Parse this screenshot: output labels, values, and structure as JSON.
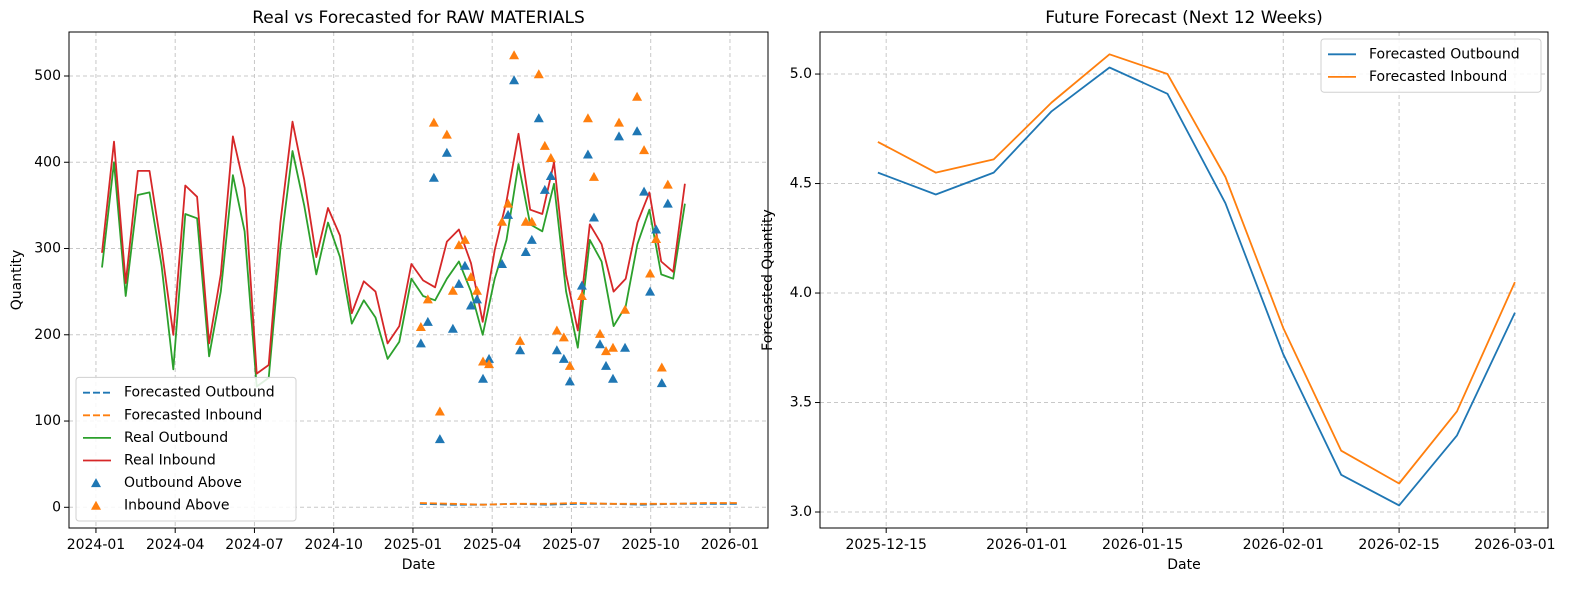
{
  "chart_data": [
    {
      "type": "line",
      "title": "Real vs Forecasted for RAW MATERIALS",
      "xlabel": "Date",
      "ylabel": "Quantity",
      "xlim": [
        2023.915,
        2026.12
      ],
      "ylim": [
        -24,
        551
      ],
      "xticks": [
        {
          "value": 2024,
          "label": "2024-01"
        },
        {
          "value": 2024.25,
          "label": "2024-04"
        },
        {
          "value": 2024.5,
          "label": "2024-07"
        },
        {
          "value": 2024.75,
          "label": "2024-10"
        },
        {
          "value": 2025,
          "label": "2025-01"
        },
        {
          "value": 2025.25,
          "label": "2025-04"
        },
        {
          "value": 2025.5,
          "label": "2025-07"
        },
        {
          "value": 2025.75,
          "label": "2025-10"
        },
        {
          "value": 2026,
          "label": "2026-01"
        }
      ],
      "yticks": [
        0,
        100,
        200,
        300,
        400,
        500
      ],
      "grid": true,
      "legend": "lower left",
      "series": [
        {
          "name": "Forecasted Outbound",
          "color": "#1f77b4",
          "kind": "line",
          "dashed": true,
          "x": [
            2025.022,
            2025.122,
            2025.222,
            2025.322,
            2025.422,
            2025.522,
            2025.622,
            2025.722,
            2025.822,
            2025.922,
            2026.025
          ],
          "values": [
            4,
            3,
            3,
            4,
            3,
            4,
            4,
            3,
            4,
            4,
            4
          ]
        },
        {
          "name": "Forecasted Inbound",
          "color": "#ff7f0e",
          "kind": "line",
          "dashed": true,
          "x": [
            2025.022,
            2025.122,
            2025.222,
            2025.322,
            2025.422,
            2025.522,
            2025.622,
            2025.722,
            2025.822,
            2025.922,
            2026.025
          ],
          "values": [
            5,
            4,
            3,
            4,
            4,
            5,
            4,
            4,
            4,
            5,
            5
          ]
        },
        {
          "name": "Real Outbound",
          "color": "#2ca02c",
          "kind": "line",
          "dashed": false,
          "x": [
            2024.019,
            2024.057,
            2024.094,
            2024.132,
            2024.169,
            2024.207,
            2024.244,
            2024.282,
            2024.319,
            2024.357,
            2024.394,
            2024.432,
            2024.469,
            2024.507,
            2024.545,
            2024.582,
            2024.62,
            2024.657,
            2024.695,
            2024.732,
            2024.77,
            2024.807,
            2024.845,
            2024.882,
            2024.92,
            2024.957,
            2024.995,
            2025.032,
            2025.07,
            2025.107,
            2025.145,
            2025.183,
            2025.22,
            2025.258,
            2025.295,
            2025.333,
            2025.37,
            2025.408,
            2025.445,
            2025.483,
            2025.52,
            2025.558,
            2025.595,
            2025.633,
            2025.671,
            2025.708,
            2025.746,
            2025.783,
            2025.821,
            2025.858
          ],
          "values": [
            278,
            400,
            245,
            362,
            365,
            280,
            160,
            340,
            335,
            175,
            250,
            385,
            320,
            140,
            150,
            300,
            413,
            350,
            270,
            330,
            290,
            213,
            240,
            220,
            172,
            192,
            265,
            245,
            240,
            265,
            285,
            250,
            200,
            265,
            310,
            398,
            328,
            320,
            375,
            250,
            185,
            310,
            285,
            210,
            233,
            305,
            345,
            270,
            265,
            352
          ]
        },
        {
          "name": "Real Inbound",
          "color": "#d62728",
          "kind": "line",
          "dashed": false,
          "x": [
            2024.019,
            2024.057,
            2024.094,
            2024.132,
            2024.169,
            2024.207,
            2024.244,
            2024.282,
            2024.319,
            2024.357,
            2024.394,
            2024.432,
            2024.469,
            2024.507,
            2024.545,
            2024.582,
            2024.62,
            2024.657,
            2024.695,
            2024.732,
            2024.77,
            2024.807,
            2024.845,
            2024.882,
            2024.92,
            2024.957,
            2024.995,
            2025.032,
            2025.07,
            2025.107,
            2025.145,
            2025.183,
            2025.22,
            2025.258,
            2025.295,
            2025.333,
            2025.37,
            2025.408,
            2025.445,
            2025.483,
            2025.52,
            2025.558,
            2025.595,
            2025.633,
            2025.671,
            2025.708,
            2025.746,
            2025.783,
            2025.821,
            2025.858
          ],
          "values": [
            295,
            424,
            260,
            390,
            390,
            300,
            200,
            373,
            360,
            190,
            270,
            430,
            370,
            155,
            165,
            330,
            447,
            380,
            290,
            347,
            315,
            225,
            262,
            250,
            190,
            210,
            282,
            263,
            255,
            308,
            322,
            283,
            215,
            298,
            355,
            433,
            345,
            340,
            400,
            270,
            205,
            328,
            305,
            250,
            265,
            330,
            365,
            285,
            273,
            375
          ]
        },
        {
          "name": "Outbound Above",
          "color": "#1f77b4",
          "kind": "scatter",
          "x": [
            2025.025,
            2025.047,
            2025.066,
            2025.085,
            2025.107,
            2025.126,
            2025.145,
            2025.164,
            2025.183,
            2025.202,
            2025.221,
            2025.24,
            2025.281,
            2025.3,
            2025.319,
            2025.338,
            2025.356,
            2025.375,
            2025.397,
            2025.416,
            2025.435,
            2025.454,
            2025.476,
            2025.495,
            2025.533,
            2025.552,
            2025.571,
            2025.59,
            2025.609,
            2025.631,
            2025.65,
            2025.669,
            2025.707,
            2025.729,
            2025.748,
            2025.767,
            2025.785,
            2025.804
          ],
          "values": [
            190,
            215,
            382,
            79,
            411,
            207,
            259,
            280,
            234,
            241,
            149,
            172,
            282,
            339,
            495,
            182,
            296,
            310,
            451,
            368,
            384,
            182,
            172,
            146,
            257,
            409,
            336,
            189,
            164,
            149,
            430,
            185,
            436,
            366,
            250,
            322,
            144,
            352
          ]
        },
        {
          "name": "Inbound Above",
          "color": "#ff7f0e",
          "kind": "scatter",
          "x": [
            2025.025,
            2025.047,
            2025.066,
            2025.085,
            2025.107,
            2025.126,
            2025.145,
            2025.164,
            2025.183,
            2025.202,
            2025.221,
            2025.24,
            2025.281,
            2025.3,
            2025.319,
            2025.338,
            2025.356,
            2025.375,
            2025.397,
            2025.416,
            2025.435,
            2025.454,
            2025.476,
            2025.495,
            2025.533,
            2025.552,
            2025.571,
            2025.59,
            2025.609,
            2025.631,
            2025.65,
            2025.669,
            2025.707,
            2025.729,
            2025.748,
            2025.767,
            2025.785,
            2025.804
          ],
          "values": [
            209,
            241,
            446,
            111,
            432,
            251,
            304,
            310,
            267,
            251,
            169,
            166,
            331,
            352,
            524,
            193,
            331,
            331,
            502,
            419,
            405,
            205,
            197,
            164,
            245,
            451,
            383,
            201,
            181,
            185,
            446,
            229,
            476,
            414,
            271,
            311,
            162,
            374
          ]
        }
      ]
    },
    {
      "type": "line",
      "title": "Future Forecast (Next 12 Weeks)",
      "xlabel": "Date",
      "ylabel": "Forecasted Quantity",
      "xlim": [
        "2025-12-07",
        "2026-03-05"
      ],
      "ylim": [
        2.927,
        5.192
      ],
      "xticks": [
        "2025-12-15",
        "2026-01-01",
        "2026-01-15",
        "2026-02-01",
        "2026-02-15",
        "2026-03-01"
      ],
      "yticks": [
        {
          "value": 3,
          "label": "3.0"
        },
        {
          "value": 3.5,
          "label": "3.5"
        },
        {
          "value": 4,
          "label": "4.0"
        },
        {
          "value": 4.5,
          "label": "4.5"
        },
        {
          "value": 5,
          "label": "5.0"
        }
      ],
      "grid": true,
      "legend": "upper right",
      "x": [
        "2025-12-14",
        "2025-12-21",
        "2025-12-28",
        "2026-01-04",
        "2026-01-11",
        "2026-01-18",
        "2026-01-25",
        "2026-02-01",
        "2026-02-08",
        "2026-02-15",
        "2026-02-22",
        "2026-03-01"
      ],
      "series": [
        {
          "name": "Forecasted Outbound",
          "color": "#1f77b4",
          "kind": "line",
          "dashed": false,
          "values": [
            4.55,
            4.45,
            4.55,
            4.83,
            5.03,
            4.91,
            4.41,
            3.72,
            3.17,
            3.03,
            3.35,
            3.91
          ]
        },
        {
          "name": "Forecasted Inbound",
          "color": "#ff7f0e",
          "kind": "line",
          "dashed": false,
          "values": [
            4.69,
            4.55,
            4.61,
            4.87,
            5.09,
            5.0,
            4.53,
            3.84,
            3.28,
            3.13,
            3.46,
            4.05
          ]
        }
      ]
    }
  ]
}
